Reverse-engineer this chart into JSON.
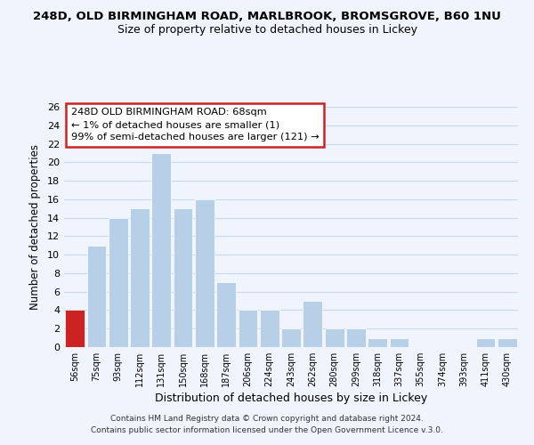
{
  "title": "248D, OLD BIRMINGHAM ROAD, MARLBROOK, BROMSGROVE, B60 1NU",
  "subtitle": "Size of property relative to detached houses in Lickey",
  "xlabel": "Distribution of detached houses by size in Lickey",
  "ylabel": "Number of detached properties",
  "footer_line1": "Contains HM Land Registry data © Crown copyright and database right 2024.",
  "footer_line2": "Contains public sector information licensed under the Open Government Licence v.3.0.",
  "annotation_line1": "248D OLD BIRMINGHAM ROAD: 68sqm",
  "annotation_line2": "← 1% of detached houses are smaller (1)",
  "annotation_line3": "99% of semi-detached houses are larger (121) →",
  "bar_color": "#b8cfe8",
  "highlight_color": "#cc2222",
  "highlight_bar_index": 0,
  "categories": [
    "56sqm",
    "75sqm",
    "93sqm",
    "112sqm",
    "131sqm",
    "150sqm",
    "168sqm",
    "187sqm",
    "206sqm",
    "224sqm",
    "243sqm",
    "262sqm",
    "280sqm",
    "299sqm",
    "318sqm",
    "337sqm",
    "355sqm",
    "374sqm",
    "393sqm",
    "411sqm",
    "430sqm"
  ],
  "values": [
    4,
    11,
    14,
    15,
    21,
    15,
    16,
    7,
    4,
    4,
    2,
    5,
    2,
    2,
    1,
    1,
    0,
    0,
    0,
    1,
    1
  ],
  "ylim": [
    0,
    26
  ],
  "yticks": [
    0,
    2,
    4,
    6,
    8,
    10,
    12,
    14,
    16,
    18,
    20,
    22,
    24,
    26
  ],
  "bg_color": "#f0f4fc",
  "grid_color": "#d8e4f0",
  "annotation_box_color": "#cc2222"
}
